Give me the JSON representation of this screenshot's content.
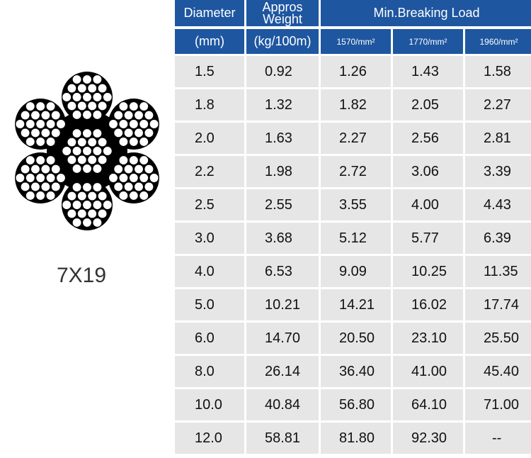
{
  "rope_label": "7X19",
  "header": {
    "diameter": "Diameter",
    "weight": "Appros Weight",
    "load": "Min.Breaking Load",
    "diameter_unit": "(mm)",
    "weight_unit": "(kg/100m)",
    "grades": [
      "1570/mm²",
      "1770/mm²",
      "1960/mm²"
    ]
  },
  "rows": [
    [
      "1.5",
      "0.92",
      "1.26",
      "1.43",
      "1.58"
    ],
    [
      "1.8",
      "1.32",
      "1.82",
      "2.05",
      "2.27"
    ],
    [
      "2.0",
      "1.63",
      "2.27",
      "2.56",
      "2.81"
    ],
    [
      "2.2",
      "1.98",
      "2.72",
      "3.06",
      "3.39"
    ],
    [
      "2.5",
      "2.55",
      "3.55",
      "4.00",
      "4.43"
    ],
    [
      "3.0",
      "3.68",
      "5.12",
      "5.77",
      "6.39"
    ],
    [
      "4.0",
      "6.53",
      "9.09",
      "10.25",
      "11.35"
    ],
    [
      "5.0",
      "10.21",
      "14.21",
      "16.02",
      "17.74"
    ],
    [
      "6.0",
      "14.70",
      "20.50",
      "23.10",
      "25.50"
    ],
    [
      "8.0",
      "26.14",
      "36.40",
      "41.00",
      "45.40"
    ],
    [
      "10.0",
      "40.84",
      "56.80",
      "64.10",
      "71.00"
    ],
    [
      "12.0",
      "58.81",
      "81.80",
      "92.30",
      "--"
    ]
  ]
}
